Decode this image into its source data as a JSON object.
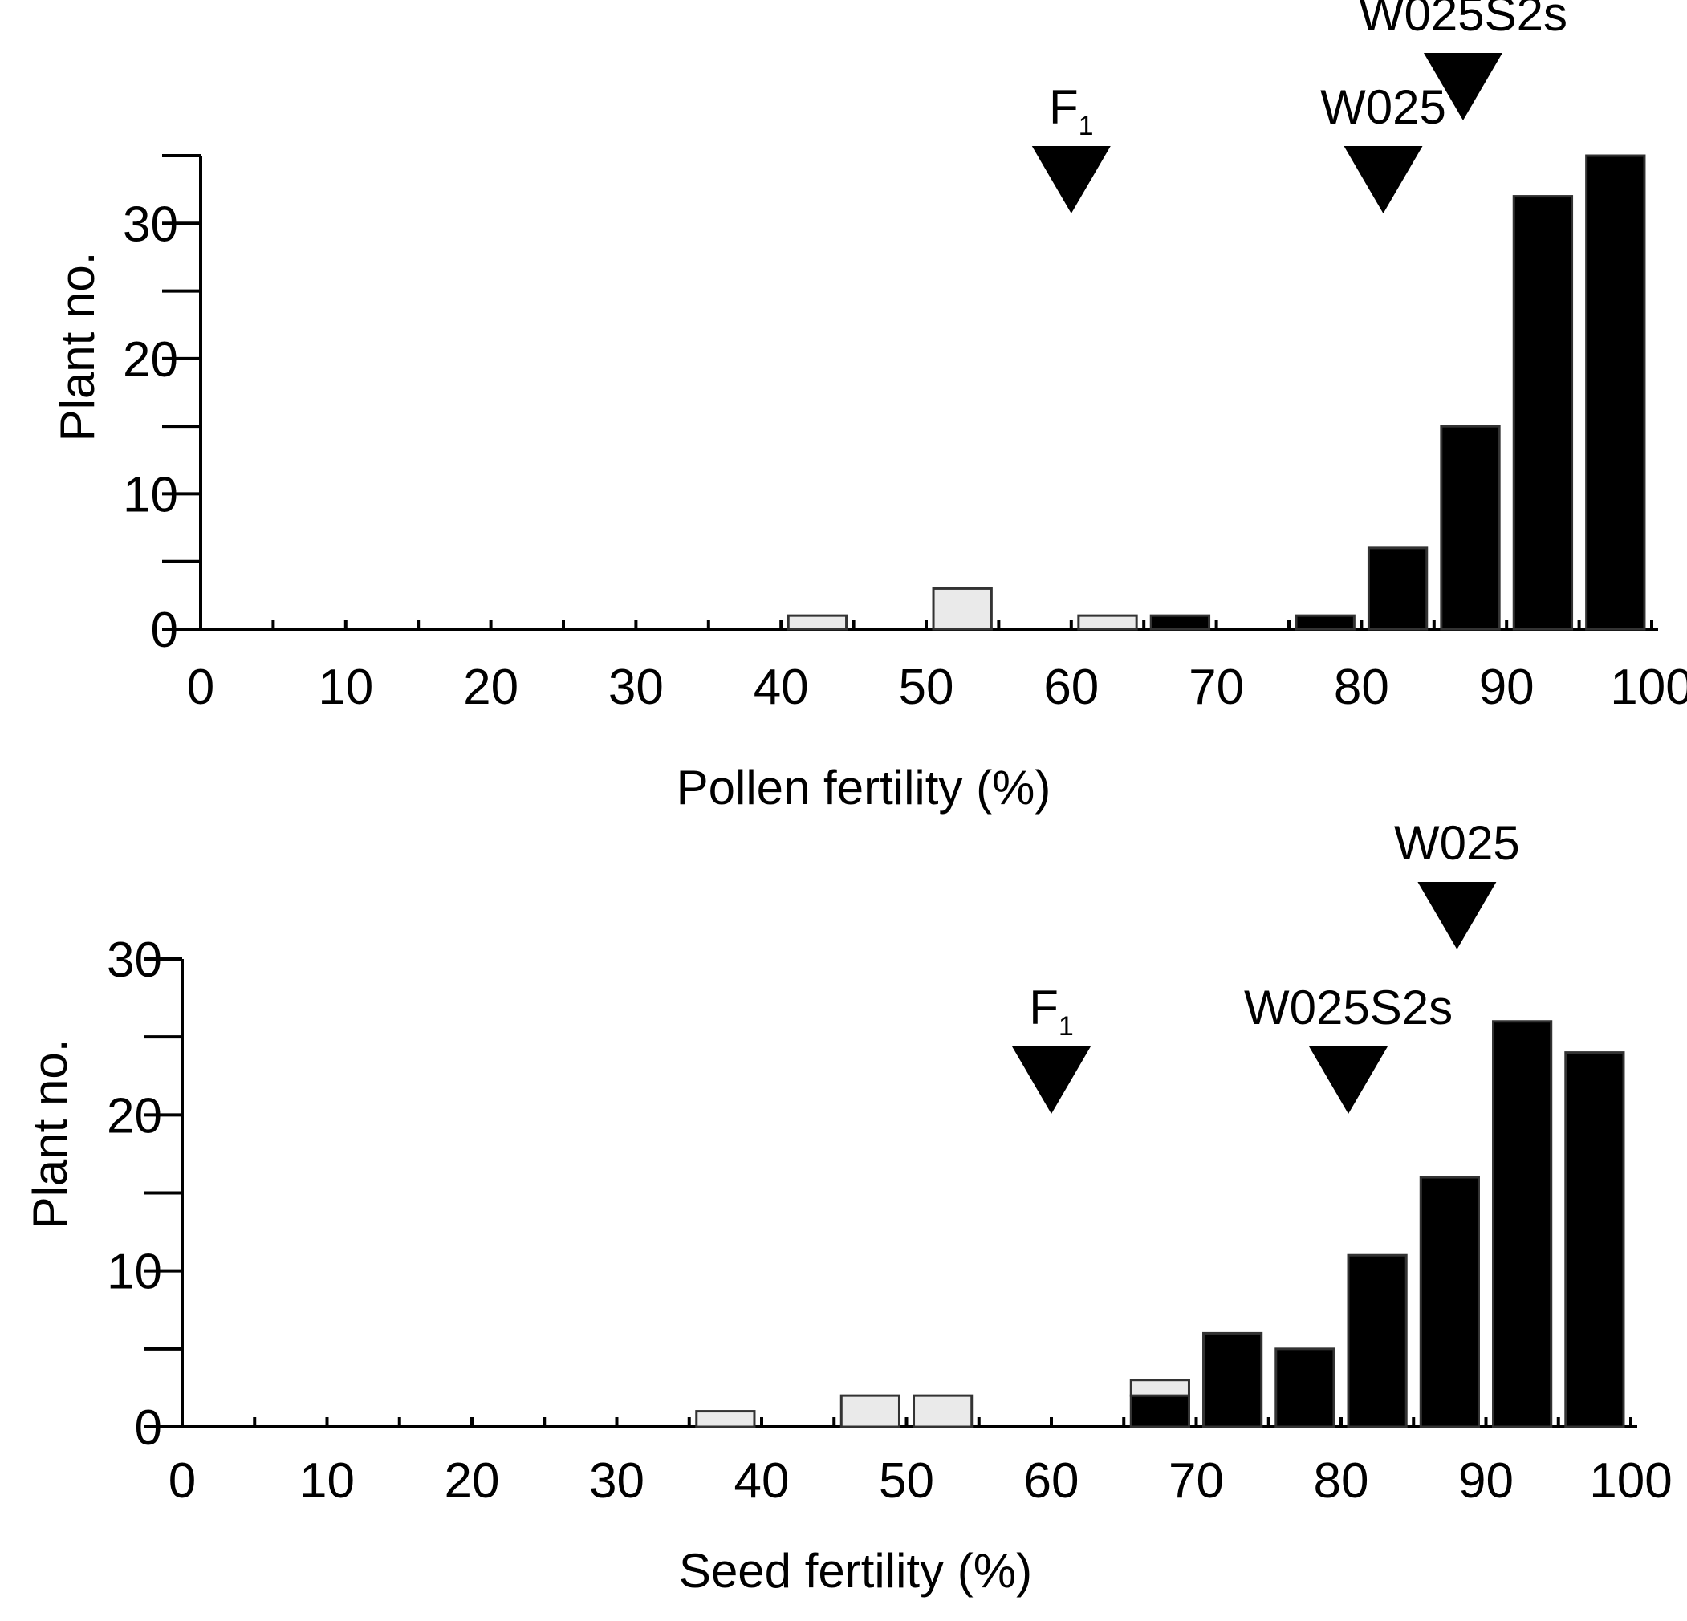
{
  "colors": {
    "background": "#ffffff",
    "axis": "#000000",
    "bar_black": "#000000",
    "bar_gray": "#eaeaea",
    "bar_gray_stroke": "#333333"
  },
  "chart_data": [
    {
      "type": "bar",
      "stacked": true,
      "xlabel": "Pollen fertility (%)",
      "ylabel": "Plant no.",
      "xlim": [
        0,
        100
      ],
      "ylim": [
        0,
        35
      ],
      "bin_width": 5,
      "x_ticks": [
        0,
        10,
        20,
        30,
        40,
        50,
        60,
        70,
        80,
        90,
        100
      ],
      "y_ticks": [
        0,
        10,
        20,
        30
      ],
      "x_tick_labels": [
        "0",
        "10",
        "20",
        "30",
        "40",
        "50",
        "60",
        "70",
        "80",
        "90",
        "100"
      ],
      "y_tick_labels": [
        "0",
        "10",
        "20",
        "30"
      ],
      "bin_starts": [
        40,
        50,
        60,
        65,
        75,
        80,
        85,
        90,
        95
      ],
      "series": [
        {
          "name": "black",
          "values": [
            0,
            0,
            0,
            1,
            1,
            6,
            15,
            32,
            35
          ]
        },
        {
          "name": "gray",
          "values": [
            1,
            3,
            1,
            0,
            0,
            0,
            0,
            0,
            0
          ]
        }
      ],
      "markers": [
        {
          "label": "F",
          "subscript": "1",
          "x": 60,
          "level": 1
        },
        {
          "label": "W025",
          "subscript": "",
          "x": 81.5,
          "level": 1
        },
        {
          "label": "W025S2s",
          "subscript": "",
          "x": 87,
          "level": 2
        }
      ]
    },
    {
      "type": "bar",
      "stacked": true,
      "xlabel": "Seed fertility (%)",
      "ylabel": "Plant no.",
      "xlim": [
        0,
        100
      ],
      "ylim": [
        0,
        30
      ],
      "bin_width": 5,
      "x_ticks": [
        0,
        10,
        20,
        30,
        40,
        50,
        60,
        70,
        80,
        90,
        100
      ],
      "y_ticks": [
        0,
        10,
        20,
        30
      ],
      "x_tick_labels": [
        "0",
        "10",
        "20",
        "30",
        "40",
        "50",
        "60",
        "70",
        "80",
        "90",
        "100"
      ],
      "y_tick_labels": [
        "0",
        "10",
        "20",
        "30"
      ],
      "bin_starts": [
        35,
        45,
        50,
        65,
        70,
        75,
        80,
        85,
        90,
        95
      ],
      "series": [
        {
          "name": "black",
          "values": [
            0,
            0,
            0,
            2,
            6,
            5,
            11,
            16,
            26,
            24
          ]
        },
        {
          "name": "gray",
          "values": [
            1,
            2,
            2,
            1,
            0,
            0,
            0,
            0,
            0,
            0
          ]
        }
      ],
      "markers": [
        {
          "label": "F",
          "subscript": "1",
          "x": 60,
          "level": 1
        },
        {
          "label": "W025S2s",
          "subscript": "",
          "x": 80.5,
          "level": 1
        },
        {
          "label": "W025",
          "subscript": "",
          "x": 88,
          "level": 2
        }
      ]
    }
  ]
}
